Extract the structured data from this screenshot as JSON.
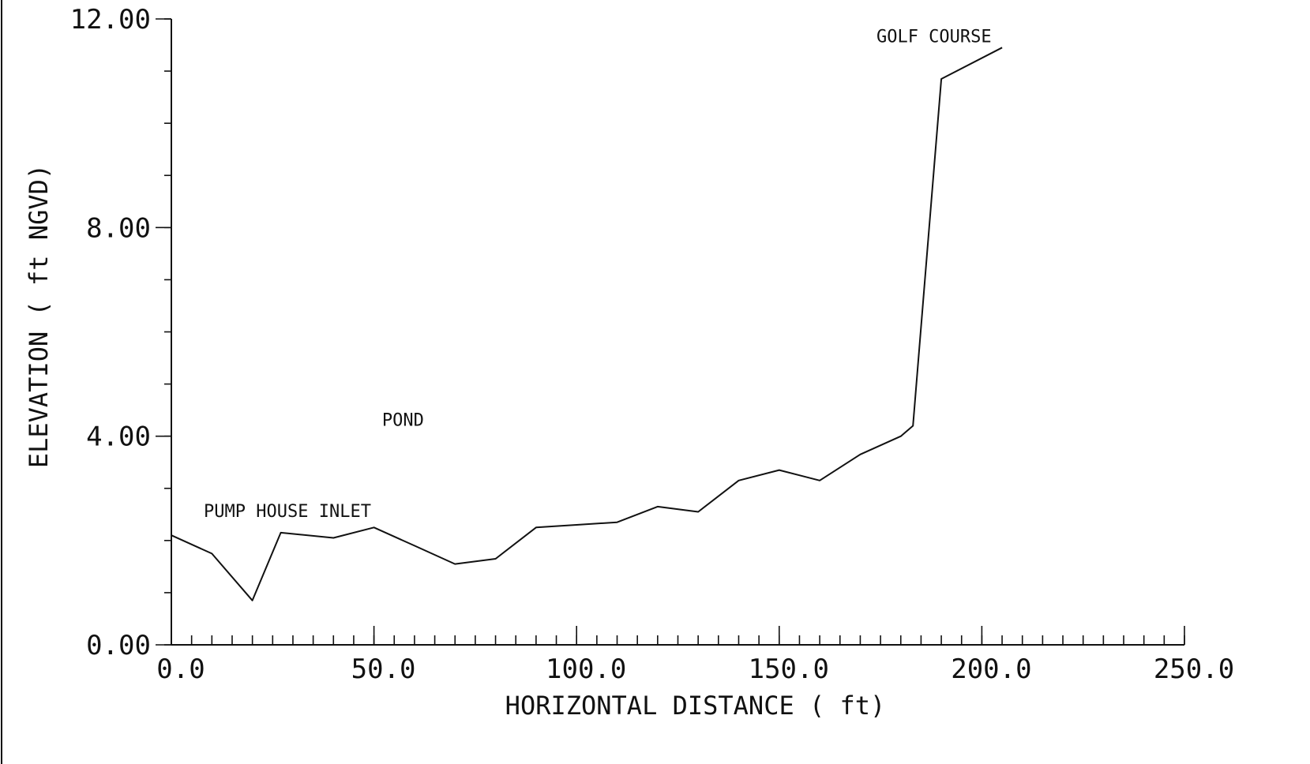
{
  "chart_data": {
    "type": "line",
    "title": "",
    "xlabel": "HORIZONTAL DISTANCE ( ft)",
    "ylabel": "ELEVATION ( ft NGVD)",
    "xlim": [
      0,
      250
    ],
    "ylim": [
      0,
      12
    ],
    "x_ticks": [
      {
        "value": 0,
        "label": "0.0"
      },
      {
        "value": 50,
        "label": "50.0"
      },
      {
        "value": 100,
        "label": "100.0"
      },
      {
        "value": 150,
        "label": "150.0"
      },
      {
        "value": 200,
        "label": "200.0"
      },
      {
        "value": 250,
        "label": "250.0"
      }
    ],
    "y_ticks": [
      {
        "value": 0,
        "label": "0.00"
      },
      {
        "value": 4,
        "label": "4.00"
      },
      {
        "value": 8,
        "label": "8.00"
      },
      {
        "value": 12,
        "label": "12.00"
      }
    ],
    "x_minor_step": 5,
    "y_minor_step": 1,
    "grid": false,
    "series": [
      {
        "x": [
          0,
          10,
          20,
          27,
          40,
          50,
          60,
          70,
          80,
          90,
          100,
          110,
          120,
          130,
          140,
          150,
          160,
          170,
          180,
          183,
          190,
          205
        ],
        "y": [
          2.1,
          1.75,
          0.85,
          2.15,
          2.05,
          2.25,
          1.9,
          1.55,
          1.65,
          2.25,
          2.3,
          2.35,
          2.65,
          2.55,
          3.15,
          3.35,
          3.15,
          3.65,
          4.0,
          4.2,
          10.85,
          11.45
        ]
      }
    ],
    "annotations": [
      {
        "text": "GOLF COURSE",
        "x": 174,
        "y": 11.55
      },
      {
        "text": "POND",
        "x": 52,
        "y": 4.2
      },
      {
        "text": "PUMP HOUSE INLET",
        "x": 8,
        "y": 2.45
      }
    ]
  }
}
